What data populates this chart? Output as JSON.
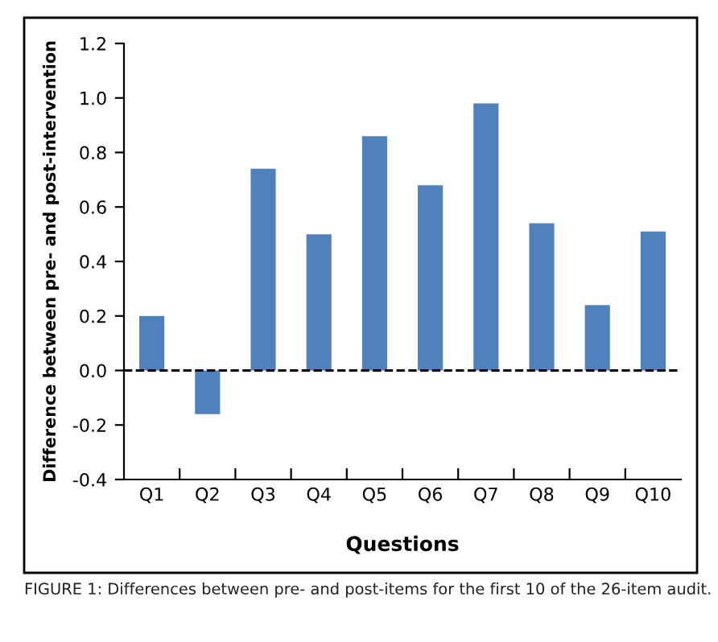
{
  "chart_data": {
    "type": "bar",
    "categories": [
      "Q1",
      "Q2",
      "Q3",
      "Q4",
      "Q5",
      "Q6",
      "Q7",
      "Q8",
      "Q9",
      "Q10"
    ],
    "values": [
      0.2,
      -0.16,
      0.74,
      0.5,
      0.86,
      0.68,
      0.98,
      0.54,
      0.24,
      0.51
    ],
    "color": "#4f81bd",
    "xlabel": "Questions",
    "ylabel": "Difference between pre- and post-intervention",
    "ylim": [
      -0.4,
      1.2
    ],
    "yticks": [
      {
        "value": -0.4,
        "label": "-0.4"
      },
      {
        "value": -0.2,
        "label": "-0.2"
      },
      {
        "value": 0,
        "label": "0.0"
      },
      {
        "value": 0.2,
        "label": "0.2"
      },
      {
        "value": 0.4,
        "label": "0.4"
      },
      {
        "value": 0.6,
        "label": "0.6"
      },
      {
        "value": 0.8,
        "label": "0.8"
      },
      {
        "value": 1.0,
        "label": "1.0"
      },
      {
        "value": 1.2,
        "label": "1.2"
      }
    ],
    "ref_lines": [
      {
        "axis": "y",
        "value": 0,
        "color": "#000000",
        "line_style": "dashed"
      }
    ],
    "grid": false,
    "annotations": [
      "FIGURE 1: Differences between pre- and post-items for the first 10 of the 26-item audit."
    ]
  }
}
